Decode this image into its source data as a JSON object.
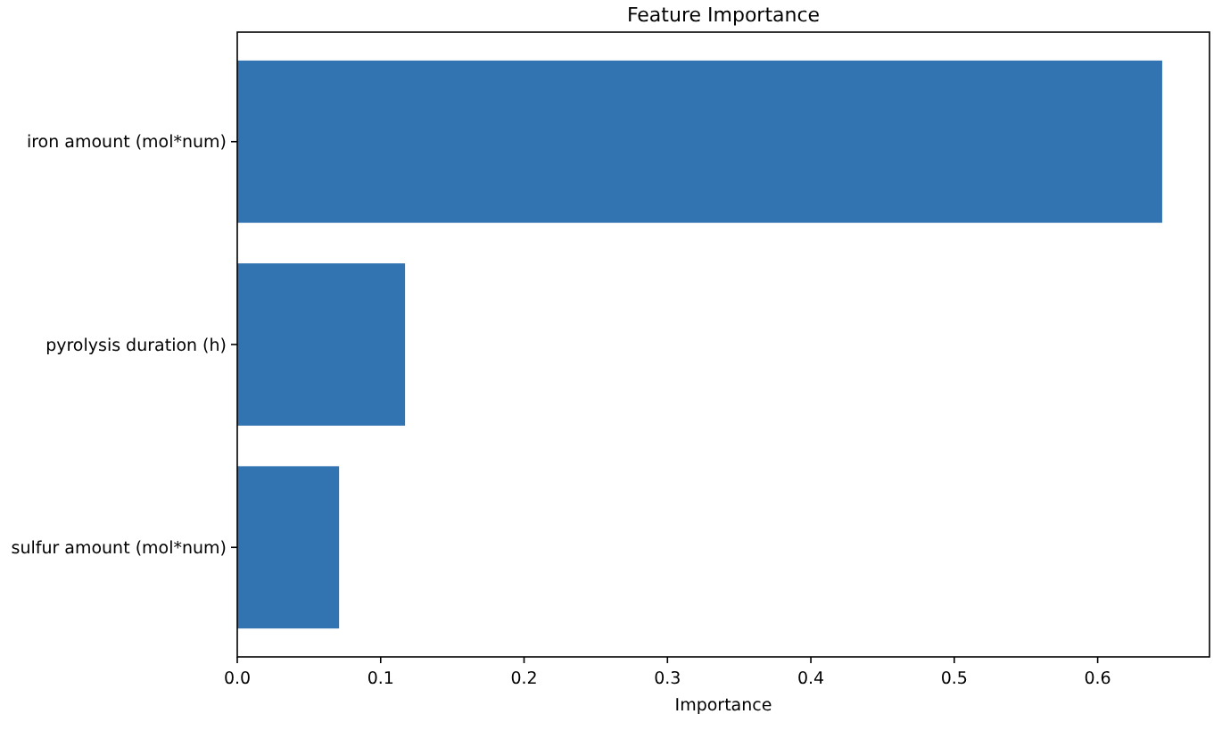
{
  "chart_data": {
    "type": "bar",
    "orientation": "horizontal",
    "title": "Feature Importance",
    "xlabel": "Importance",
    "categories": [
      "iron amount (mol*num)",
      "pyrolysis duration (h)",
      "sulfur amount (mol*num)"
    ],
    "values": [
      0.645,
      0.117,
      0.071
    ],
    "color": "#3274b2",
    "xlim": [
      0,
      0.678
    ],
    "xticks": [
      {
        "value": 0,
        "label": "0.0"
      },
      0.1,
      0.2,
      0.3,
      0.4,
      0.5,
      0.6
    ]
  }
}
